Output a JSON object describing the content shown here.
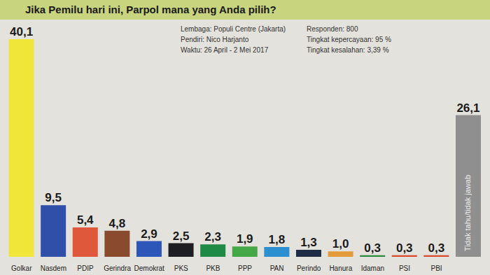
{
  "chart_data": {
    "type": "bar",
    "title": "Jika Pemilu hari ini, Parpol mana yang Anda pilih?",
    "annotations": [
      "Lembaga: Populi Centre (Jakarta)",
      "Pendiri: Nico Harjanto",
      "Waktu: 26 April - 2 Mei 2017",
      "Responden: 800",
      "Tingkat kepercayaan: 95 %",
      "Tingkat kesalahan: 3,39 %"
    ],
    "categories": [
      "Golkar",
      "Nasdem",
      "PDIP",
      "Gerindra",
      "Demokrat",
      "PKS",
      "PKB",
      "PPP",
      "PAN",
      "Perindo",
      "Hanura",
      "Idaman",
      "PSI",
      "PBI",
      "Tidak tahu/tidak jawab"
    ],
    "values": [
      40.1,
      9.5,
      5.4,
      4.8,
      2.9,
      2.5,
      2.3,
      1.9,
      1.8,
      1.3,
      1.0,
      0.3,
      0.3,
      0.3,
      26.1
    ],
    "value_labels": [
      "40,1",
      "9,5",
      "5,4",
      "4,8",
      "2,9",
      "2,5",
      "2,3",
      "1,9",
      "1,8",
      "1,3",
      "1,0",
      "0,3",
      "0,3",
      "0,3",
      "26,1"
    ],
    "colors": [
      "#f0e63a",
      "#2f4fa8",
      "#e0583c",
      "#8a4a2e",
      "#2c56b8",
      "#1e1e22",
      "#1f8a45",
      "#44a846",
      "#2b8fd0",
      "#1f2a44",
      "#e39a3a",
      "#2c8a3c",
      "#d9482f",
      "#d9482f",
      "#8f8f8f"
    ],
    "data_labels": true,
    "tick_labels": "x"
  }
}
